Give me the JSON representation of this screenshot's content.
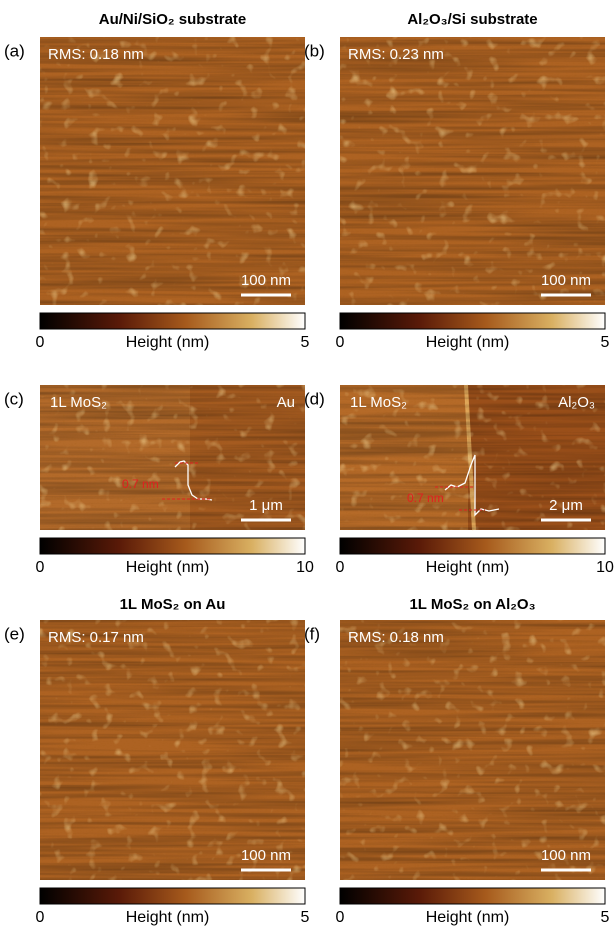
{
  "panels": [
    {
      "label": "(a)",
      "title": "Au/Ni/SiO₂ substrate",
      "rms": "RMS: 0.18 nm",
      "scale_bar": "100 nm",
      "colorbar": {
        "min": 0,
        "max": 5,
        "label": "Height (nm)"
      }
    },
    {
      "label": "(b)",
      "title": "Al₂O₃/Si substrate",
      "rms": "RMS: 0.23 nm",
      "scale_bar": "100 nm",
      "colorbar": {
        "min": 0,
        "max": 5,
        "label": "Height (nm)"
      }
    },
    {
      "label": "(c)",
      "left_label": "1L MoS₂",
      "right_label": "Au",
      "step": "0.7 nm",
      "scale_bar": "1 μm",
      "colorbar": {
        "min": 0,
        "max": 10,
        "label": "Height (nm)"
      }
    },
    {
      "label": "(d)",
      "left_label": "1L MoS₂",
      "right_label": "Al₂O₃",
      "step": "0.7 nm",
      "scale_bar": "2 μm",
      "colorbar": {
        "min": 0,
        "max": 10,
        "label": "Height (nm)"
      }
    },
    {
      "label": "(e)",
      "title": "1L MoS₂ on Au",
      "rms": "RMS: 0.17 nm",
      "scale_bar": "100 nm",
      "colorbar": {
        "min": 0,
        "max": 5,
        "label": "Height (nm)"
      }
    },
    {
      "label": "(f)",
      "title": "1L MoS₂ on Al₂O₃",
      "rms": "RMS: 0.18 nm",
      "scale_bar": "100 nm",
      "colorbar": {
        "min": 0,
        "max": 5,
        "label": "Height (nm)"
      }
    }
  ]
}
